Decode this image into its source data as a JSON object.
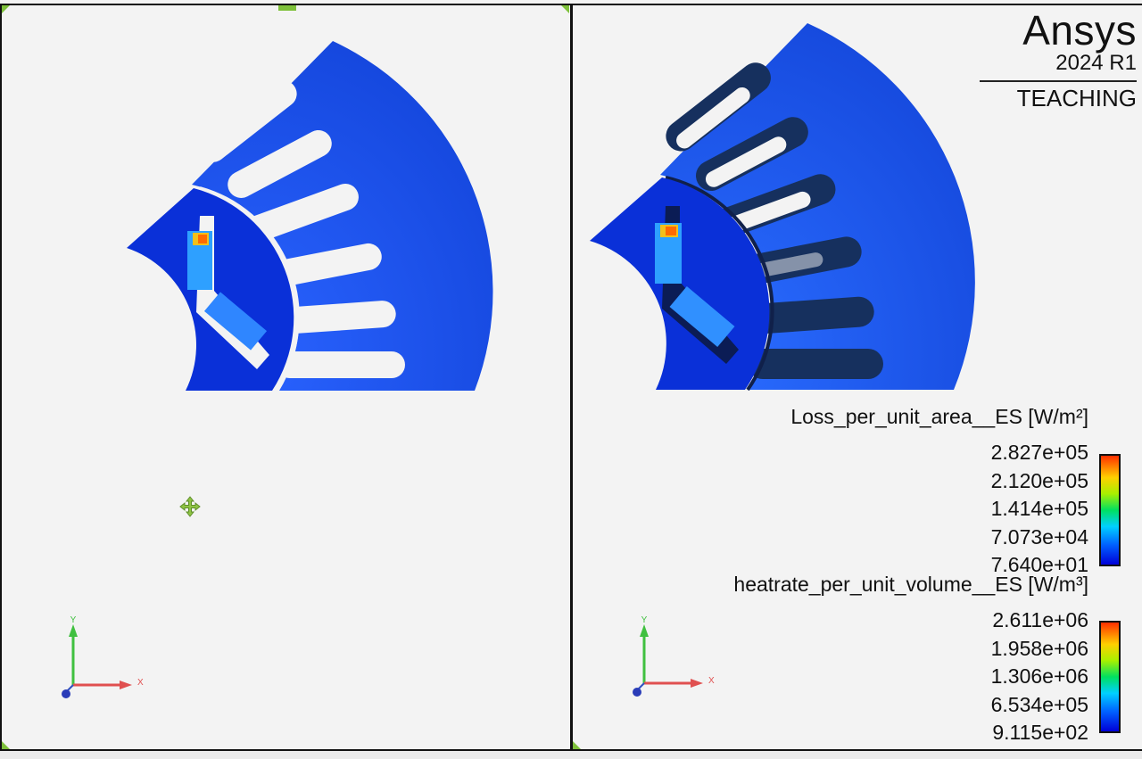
{
  "brand": {
    "name": "Ansys",
    "version": "2024 R1",
    "edition": "TEACHING"
  },
  "legend_area": {
    "title": "Loss_per_unit_area__ES [W/m²]",
    "labels": [
      "2.827e+05",
      "2.120e+05",
      "1.414e+05",
      "7.073e+04",
      "7.640e+01"
    ]
  },
  "legend_volume": {
    "title": "heatrate_per_unit_volume__ES [W/m³]",
    "labels": [
      "2.611e+06",
      "1.958e+06",
      "1.306e+06",
      "6.534e+05",
      "9.115e+02"
    ]
  },
  "triad": {
    "x_label": "X",
    "y_label": "Y"
  },
  "colors": {
    "background": "#f3f3f3",
    "stator_blue": "#1a4fe0",
    "rotor_blue": "#0a2fd8",
    "axis_x": "#e05050",
    "axis_y": "#40c040",
    "marker_green": "#7ec13a"
  },
  "icons": {
    "move": "move-arrows-icon",
    "corner": "corner-triangle-icon"
  }
}
